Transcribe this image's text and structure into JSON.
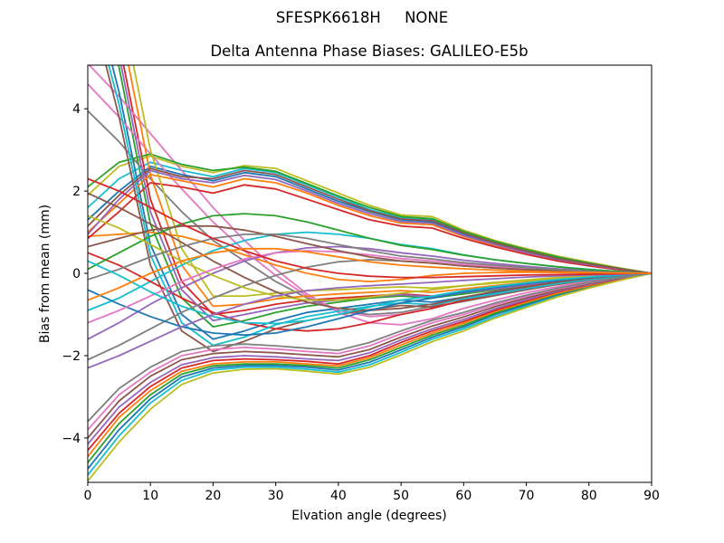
{
  "chart_data": {
    "type": "line",
    "suptitle": "SFESPK6618H     NONE",
    "title": "Delta Antenna Phase Biases: GALILEO-E5b",
    "xlabel": "Elvation angle (degrees)",
    "ylabel": "Bias from mean (mm)",
    "xlim": [
      0,
      90
    ],
    "ylim": [
      -5.08,
      5.06
    ],
    "xticks": [
      0,
      10,
      20,
      30,
      40,
      50,
      60,
      70,
      80,
      90
    ],
    "xtick_labels": [
      "0",
      "10",
      "20",
      "30",
      "40",
      "50",
      "60",
      "70",
      "80",
      "90"
    ],
    "yticks": [
      -4,
      -2,
      0,
      2,
      4
    ],
    "ytick_labels": [
      "−4",
      "−2",
      "0",
      "2",
      "4"
    ],
    "grid": false,
    "legend": false,
    "style": {
      "background": "#ffffff",
      "spine_color": "#000000",
      "text_color": "#000000",
      "line_width": 1.8
    },
    "x": [
      0,
      5,
      10,
      15,
      20,
      25,
      30,
      35,
      40,
      45,
      50,
      55,
      60,
      65,
      70,
      75,
      80,
      85,
      90
    ],
    "series": [
      {
        "color": "#bcbd22",
        "values": [
          1.9,
          2.6,
          2.85,
          2.6,
          2.45,
          2.62,
          2.55,
          2.25,
          1.95,
          1.65,
          1.42,
          1.38,
          1.05,
          0.8,
          0.6,
          0.42,
          0.27,
          0.13,
          0
        ]
      },
      {
        "color": "#2ca02c",
        "values": [
          8.0,
          5.0,
          1.2,
          -0.6,
          -1.3,
          -1.15,
          -0.95,
          -0.8,
          -0.7,
          -0.6,
          -0.55,
          -0.6,
          -0.5,
          -0.4,
          -0.3,
          -0.2,
          -0.12,
          -0.06,
          0
        ]
      },
      {
        "color": "#17becf",
        "values": [
          -4.9,
          -3.95,
          -3.15,
          -2.6,
          -2.35,
          -2.28,
          -2.28,
          -2.33,
          -2.4,
          -2.22,
          -1.92,
          -1.6,
          -1.35,
          -1.05,
          -0.8,
          -0.55,
          -0.35,
          -0.16,
          0
        ]
      },
      {
        "color": "#7f7f7f",
        "values": [
          3.95,
          3.2,
          2.3,
          1.5,
          0.8,
          0.3,
          -0.2,
          -0.6,
          -0.9,
          -1.0,
          -0.95,
          -0.8,
          -0.6,
          -0.45,
          -0.33,
          -0.22,
          -0.13,
          -0.06,
          0
        ]
      },
      {
        "color": "#17becf",
        "values": [
          1.6,
          2.3,
          2.7,
          2.5,
          2.35,
          2.55,
          2.45,
          2.15,
          1.85,
          1.55,
          1.35,
          1.3,
          1.0,
          0.76,
          0.56,
          0.38,
          0.24,
          0.11,
          0
        ]
      },
      {
        "color": "#d62728",
        "values": [
          8.6,
          5.6,
          1.8,
          -0.2,
          -1.0,
          -0.9,
          -0.75,
          -0.65,
          -0.6,
          -0.55,
          -0.5,
          -0.55,
          -0.45,
          -0.36,
          -0.27,
          -0.18,
          -0.1,
          -0.05,
          0
        ]
      },
      {
        "color": "#1f77b4",
        "values": [
          -4.75,
          -3.8,
          -3.05,
          -2.52,
          -2.3,
          -2.24,
          -2.24,
          -2.28,
          -2.35,
          -2.16,
          -1.86,
          -1.55,
          -1.3,
          -1.0,
          -0.76,
          -0.52,
          -0.33,
          -0.15,
          0
        ]
      },
      {
        "color": "#e377c2",
        "values": [
          5.1,
          4.3,
          3.4,
          2.5,
          1.6,
          0.8,
          0.1,
          -0.5,
          -0.95,
          -1.2,
          -1.25,
          -1.1,
          -0.85,
          -0.65,
          -0.47,
          -0.32,
          -0.19,
          -0.09,
          0
        ]
      },
      {
        "color": "#1f77b4",
        "values": [
          1.3,
          2.0,
          2.6,
          2.4,
          2.25,
          2.45,
          2.35,
          2.05,
          1.75,
          1.5,
          1.3,
          1.25,
          0.95,
          0.72,
          0.52,
          0.35,
          0.22,
          0.1,
          0
        ]
      },
      {
        "color": "#1f77b4",
        "values": [
          7.4,
          4.4,
          0.7,
          -1.0,
          -1.6,
          -1.4,
          -1.15,
          -0.95,
          -0.85,
          -0.75,
          -0.65,
          -0.7,
          -0.58,
          -0.46,
          -0.34,
          -0.23,
          -0.14,
          -0.06,
          0
        ]
      },
      {
        "color": "#2ca02c",
        "values": [
          -4.6,
          -3.65,
          -2.95,
          -2.45,
          -2.25,
          -2.2,
          -2.2,
          -2.24,
          -2.3,
          -2.1,
          -1.8,
          -1.5,
          -1.26,
          -0.97,
          -0.73,
          -0.5,
          -0.31,
          -0.14,
          0
        ]
      },
      {
        "color": "#e377c2",
        "values": [
          4.6,
          3.8,
          2.9,
          2.05,
          1.25,
          0.55,
          -0.05,
          -0.55,
          -0.9,
          -1.05,
          -1.0,
          -0.85,
          -0.65,
          -0.5,
          -0.36,
          -0.24,
          -0.14,
          -0.07,
          0
        ]
      },
      {
        "color": "#ff7f0e",
        "values": [
          1.0,
          1.7,
          2.4,
          2.25,
          2.1,
          2.3,
          2.2,
          1.95,
          1.65,
          1.4,
          1.22,
          1.18,
          0.9,
          0.68,
          0.5,
          0.33,
          0.2,
          0.09,
          0
        ]
      },
      {
        "color": "#ff7f0e",
        "values": [
          9.2,
          6.2,
          2.4,
          0.2,
          -0.8,
          -0.75,
          -0.62,
          -0.55,
          -0.5,
          -0.46,
          -0.42,
          -0.46,
          -0.38,
          -0.3,
          -0.22,
          -0.15,
          -0.09,
          -0.04,
          0
        ]
      },
      {
        "color": "#ff7f0e",
        "values": [
          -4.45,
          -3.5,
          -2.85,
          -2.38,
          -2.2,
          -2.15,
          -2.15,
          -2.2,
          -2.25,
          -2.05,
          -1.74,
          -1.45,
          -1.21,
          -0.93,
          -0.7,
          -0.48,
          -0.3,
          -0.13,
          0
        ]
      },
      {
        "color": "#ff7f0e",
        "values": [
          0.9,
          0.95,
          1.0,
          0.9,
          0.7,
          0.45,
          0.2,
          0.0,
          -0.15,
          -0.2,
          -0.15,
          -0.05,
          0.0,
          0.02,
          0.03,
          0.02,
          0.01,
          0.01,
          0
        ]
      },
      {
        "color": "#d62728",
        "values": [
          0.85,
          1.5,
          2.2,
          2.1,
          1.95,
          2.15,
          2.05,
          1.8,
          1.55,
          1.3,
          1.15,
          1.1,
          0.85,
          0.64,
          0.46,
          0.3,
          0.18,
          0.08,
          0
        ]
      },
      {
        "color": "#8c564b",
        "values": [
          6.8,
          3.8,
          0.2,
          -1.4,
          -1.9,
          -1.65,
          -1.35,
          -1.15,
          -1.0,
          -0.88,
          -0.78,
          -0.82,
          -0.68,
          -0.54,
          -0.4,
          -0.27,
          -0.16,
          -0.07,
          0
        ]
      },
      {
        "color": "#d62728",
        "values": [
          -4.3,
          -3.4,
          -2.75,
          -2.3,
          -2.12,
          -2.08,
          -2.1,
          -2.14,
          -2.2,
          -2.0,
          -1.68,
          -1.4,
          -1.17,
          -0.9,
          -0.67,
          -0.45,
          -0.28,
          -0.13,
          0
        ]
      },
      {
        "color": "#17becf",
        "values": [
          -0.9,
          -0.6,
          -0.2,
          0.2,
          0.55,
          0.8,
          0.95,
          1.0,
          0.95,
          0.85,
          0.7,
          0.6,
          0.45,
          0.33,
          0.24,
          0.16,
          0.1,
          0.04,
          0
        ]
      },
      {
        "color": "#2ca02c",
        "values": [
          2.1,
          2.7,
          2.9,
          2.65,
          2.5,
          2.58,
          2.48,
          2.18,
          1.88,
          1.6,
          1.38,
          1.33,
          1.02,
          0.78,
          0.58,
          0.4,
          0.25,
          0.12,
          0
        ]
      },
      {
        "color": "#bcbd22",
        "values": [
          9.8,
          6.8,
          3.0,
          0.6,
          -0.55,
          -0.55,
          -0.48,
          -0.42,
          -0.4,
          -0.36,
          -0.33,
          -0.36,
          -0.3,
          -0.24,
          -0.18,
          -0.12,
          -0.07,
          -0.03,
          0
        ]
      },
      {
        "color": "#9467bd",
        "values": [
          -4.15,
          -3.25,
          -2.65,
          -2.22,
          -2.05,
          -2.0,
          -2.03,
          -2.08,
          -2.12,
          -1.93,
          -1.62,
          -1.35,
          -1.12,
          -0.86,
          -0.64,
          -0.43,
          -0.27,
          -0.12,
          0
        ]
      },
      {
        "color": "#d62728",
        "values": [
          0.5,
          0.2,
          -0.2,
          -0.6,
          -0.95,
          -1.2,
          -1.35,
          -1.4,
          -1.35,
          -1.2,
          -1.0,
          -0.85,
          -0.65,
          -0.5,
          -0.36,
          -0.24,
          -0.14,
          -0.06,
          0
        ]
      },
      {
        "color": "#9467bd",
        "values": [
          0.95,
          1.8,
          2.5,
          2.3,
          2.2,
          2.38,
          2.28,
          2.0,
          1.7,
          1.45,
          1.26,
          1.22,
          0.92,
          0.7,
          0.5,
          0.34,
          0.21,
          0.1,
          0
        ]
      },
      {
        "color": "#17becf",
        "values": [
          7.0,
          4.1,
          0.45,
          -1.2,
          -1.75,
          -1.55,
          -1.25,
          -1.05,
          -0.92,
          -0.8,
          -0.72,
          -0.76,
          -0.62,
          -0.5,
          -0.37,
          -0.25,
          -0.15,
          -0.07,
          0
        ]
      },
      {
        "color": "#8c564b",
        "values": [
          -4.0,
          -3.1,
          -2.5,
          -2.1,
          -1.95,
          -1.9,
          -1.93,
          -1.98,
          -2.03,
          -1.85,
          -1.55,
          -1.28,
          -1.06,
          -0.81,
          -0.6,
          -0.41,
          -0.25,
          -0.11,
          0
        ]
      },
      {
        "color": "#9467bd",
        "values": [
          -1.6,
          -1.2,
          -0.75,
          -0.35,
          0.0,
          0.3,
          0.5,
          0.62,
          0.65,
          0.6,
          0.5,
          0.42,
          0.32,
          0.24,
          0.17,
          0.11,
          0.07,
          0.03,
          0
        ]
      },
      {
        "color": "#8c564b",
        "values": [
          1.15,
          1.9,
          2.55,
          2.35,
          2.3,
          2.5,
          2.4,
          2.1,
          1.8,
          1.52,
          1.32,
          1.28,
          0.98,
          0.74,
          0.54,
          0.36,
          0.23,
          0.11,
          0
        ]
      },
      {
        "color": "#9467bd",
        "values": [
          8.3,
          5.3,
          1.5,
          -0.4,
          -1.15,
          -1.0,
          -0.85,
          -0.72,
          -0.65,
          -0.58,
          -0.52,
          -0.57,
          -0.47,
          -0.38,
          -0.28,
          -0.19,
          -0.11,
          -0.05,
          0
        ]
      },
      {
        "color": "#e377c2",
        "values": [
          -3.8,
          -2.95,
          -2.4,
          -2.0,
          -1.85,
          -1.8,
          -1.84,
          -1.9,
          -1.95,
          -1.76,
          -1.47,
          -1.2,
          -1.0,
          -0.76,
          -0.56,
          -0.38,
          -0.23,
          -0.1,
          0
        ]
      },
      {
        "color": "#8c564b",
        "values": [
          1.95,
          1.6,
          1.2,
          0.75,
          0.3,
          -0.1,
          -0.45,
          -0.7,
          -0.85,
          -0.9,
          -0.85,
          -0.75,
          -0.58,
          -0.44,
          -0.32,
          -0.21,
          -0.12,
          -0.05,
          0
        ]
      },
      {
        "color": "#bcbd22",
        "values": [
          -5.05,
          -4.1,
          -3.3,
          -2.7,
          -2.42,
          -2.33,
          -2.32,
          -2.38,
          -2.45,
          -2.28,
          -1.98,
          -1.66,
          -1.4,
          -1.09,
          -0.83,
          -0.57,
          -0.36,
          -0.17,
          0
        ]
      },
      {
        "color": "#7f7f7f",
        "values": [
          -2.1,
          -1.75,
          -1.35,
          -0.95,
          -0.6,
          -0.3,
          -0.05,
          0.15,
          0.28,
          0.33,
          0.3,
          0.25,
          0.18,
          0.13,
          0.09,
          0.06,
          0.03,
          0.01,
          0
        ]
      },
      {
        "color": "#7f7f7f",
        "values": [
          -3.6,
          -2.8,
          -2.28,
          -1.9,
          -1.76,
          -1.72,
          -1.76,
          -1.82,
          -1.87,
          -1.68,
          -1.4,
          -1.14,
          -0.95,
          -0.72,
          -0.53,
          -0.36,
          -0.22,
          -0.1,
          0
        ]
      },
      {
        "color": "#2ca02c",
        "values": [
          0.1,
          0.5,
          0.9,
          1.2,
          1.4,
          1.45,
          1.4,
          1.25,
          1.05,
          0.85,
          0.68,
          0.58,
          0.44,
          0.33,
          0.24,
          0.16,
          0.09,
          0.04,
          0
        ]
      },
      {
        "color": "#1f77b4",
        "values": [
          -0.4,
          -0.75,
          -1.05,
          -1.3,
          -1.45,
          -1.5,
          -1.45,
          -1.3,
          -1.1,
          -0.9,
          -0.72,
          -0.6,
          -0.46,
          -0.35,
          -0.25,
          -0.17,
          -0.1,
          -0.04,
          0
        ]
      },
      {
        "color": "#bcbd22",
        "values": [
          1.4,
          1.1,
          0.7,
          0.3,
          -0.05,
          -0.35,
          -0.55,
          -0.65,
          -0.65,
          -0.58,
          -0.48,
          -0.4,
          -0.3,
          -0.22,
          -0.16,
          -0.1,
          -0.06,
          -0.03,
          0
        ]
      },
      {
        "color": "#e377c2",
        "values": [
          -1.2,
          -0.9,
          -0.55,
          -0.2,
          0.1,
          0.35,
          0.5,
          0.55,
          0.52,
          0.45,
          0.36,
          0.3,
          0.22,
          0.17,
          0.12,
          0.08,
          0.05,
          0.02,
          0
        ]
      },
      {
        "color": "#8c564b",
        "values": [
          0.65,
          0.85,
          1.05,
          1.15,
          1.15,
          1.05,
          0.9,
          0.72,
          0.55,
          0.4,
          0.3,
          0.25,
          0.18,
          0.13,
          0.09,
          0.06,
          0.04,
          0.02,
          0
        ]
      },
      {
        "color": "#7f7f7f",
        "values": [
          -0.15,
          0.1,
          0.4,
          0.65,
          0.85,
          0.95,
          0.95,
          0.85,
          0.7,
          0.55,
          0.42,
          0.35,
          0.26,
          0.2,
          0.14,
          0.09,
          0.05,
          0.02,
          0
        ]
      },
      {
        "color": "#17becf",
        "values": [
          0.3,
          -0.05,
          -0.45,
          -0.8,
          -1.05,
          -1.2,
          -1.22,
          -1.15,
          -1.0,
          -0.82,
          -0.65,
          -0.55,
          -0.42,
          -0.32,
          -0.23,
          -0.15,
          -0.09,
          -0.04,
          0
        ]
      },
      {
        "color": "#9467bd",
        "values": [
          -2.3,
          -2.0,
          -1.65,
          -1.3,
          -1.0,
          -0.75,
          -0.55,
          -0.42,
          -0.35,
          -0.3,
          -0.26,
          -0.22,
          -0.17,
          -0.13,
          -0.09,
          -0.06,
          -0.04,
          -0.02,
          0
        ]
      },
      {
        "color": "#d62728",
        "values": [
          2.3,
          2.0,
          1.6,
          1.2,
          0.85,
          0.55,
          0.3,
          0.12,
          0.0,
          -0.07,
          -0.1,
          -0.1,
          -0.08,
          -0.06,
          -0.04,
          -0.03,
          -0.02,
          -0.01,
          0
        ]
      },
      {
        "color": "#ff7f0e",
        "values": [
          -0.65,
          -0.35,
          0.0,
          0.3,
          0.5,
          0.6,
          0.6,
          0.52,
          0.4,
          0.28,
          0.2,
          0.15,
          0.11,
          0.08,
          0.05,
          0.03,
          0.02,
          0.01,
          0
        ]
      }
    ]
  }
}
